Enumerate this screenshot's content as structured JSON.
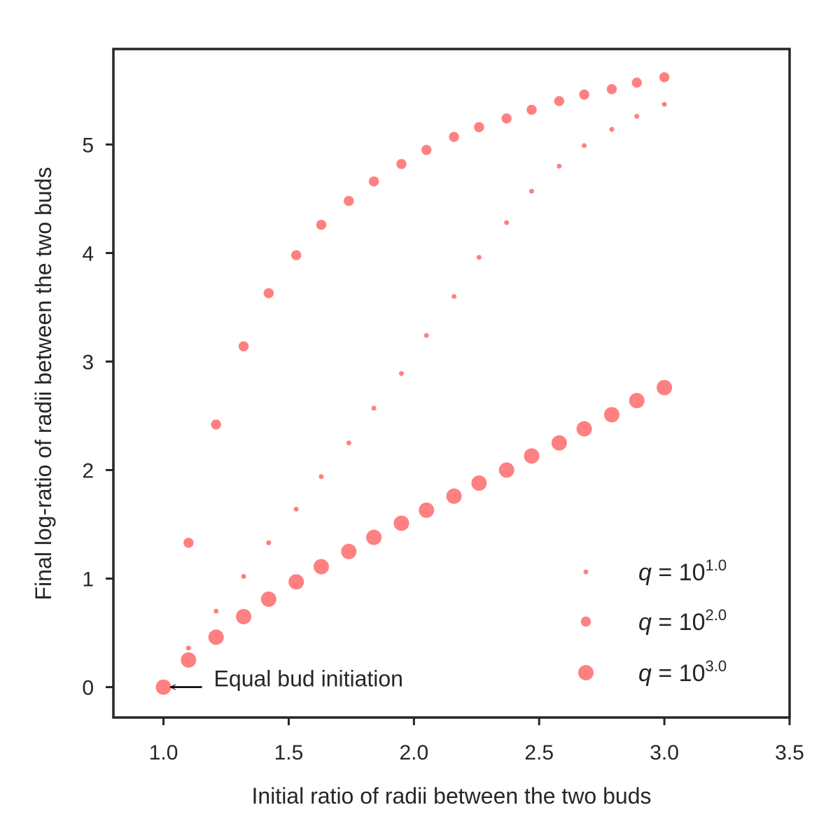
{
  "chart_data": {
    "type": "scatter",
    "title": "",
    "xlabel": "Initial ratio of radii between the two buds",
    "ylabel": "Final log-ratio of radii between the two buds",
    "xlim": [
      0.8,
      3.5
    ],
    "ylim": [
      -0.28,
      5.88
    ],
    "xticks": [
      1.0,
      1.5,
      2.0,
      2.5,
      3.0,
      3.5
    ],
    "xtick_labels": [
      "1.0",
      "1.5",
      "2.0",
      "2.5",
      "3.0",
      "3.5"
    ],
    "yticks": [
      0,
      1,
      2,
      3,
      4,
      5
    ],
    "ytick_labels": [
      "0",
      "1",
      "2",
      "3",
      "4",
      "5"
    ],
    "grid": false,
    "legend_position": "lower-right",
    "marker_color": "#ff8080",
    "series": [
      {
        "legend": {
          "base": "q = 10",
          "exponent": "1.0"
        },
        "marker_size": "small",
        "x": [
          1.0,
          1.1,
          1.21,
          1.32,
          1.42,
          1.53,
          1.63,
          1.74,
          1.84,
          1.95,
          2.05,
          2.16,
          2.26,
          2.37,
          2.47,
          2.58,
          2.68,
          2.79,
          2.89,
          3.0
        ],
        "y": [
          0.0,
          0.36,
          0.7,
          1.02,
          1.33,
          1.64,
          1.94,
          2.25,
          2.57,
          2.89,
          3.24,
          3.6,
          3.96,
          4.28,
          4.57,
          4.8,
          4.99,
          5.14,
          5.26,
          5.37
        ]
      },
      {
        "legend": {
          "base": "q = 10",
          "exponent": "2.0"
        },
        "marker_size": "medium",
        "x": [
          1.0,
          1.1,
          1.21,
          1.32,
          1.42,
          1.53,
          1.63,
          1.74,
          1.84,
          1.95,
          2.05,
          2.16,
          2.26,
          2.37,
          2.47,
          2.58,
          2.68,
          2.79,
          2.89,
          3.0
        ],
        "y": [
          0.0,
          1.33,
          2.42,
          3.14,
          3.63,
          3.98,
          4.26,
          4.48,
          4.66,
          4.82,
          4.95,
          5.07,
          5.16,
          5.24,
          5.32,
          5.4,
          5.46,
          5.51,
          5.57,
          5.62
        ]
      },
      {
        "legend": {
          "base": "q = 10",
          "exponent": "3.0"
        },
        "marker_size": "large",
        "x": [
          1.0,
          1.1,
          1.21,
          1.32,
          1.42,
          1.53,
          1.63,
          1.74,
          1.84,
          1.95,
          2.05,
          2.16,
          2.26,
          2.37,
          2.47,
          2.58,
          2.68,
          2.79,
          2.89,
          3.0
        ],
        "y": [
          0.0,
          0.25,
          0.46,
          0.65,
          0.81,
          0.97,
          1.11,
          1.25,
          1.38,
          1.51,
          1.63,
          1.76,
          1.88,
          2.0,
          2.13,
          2.25,
          2.38,
          2.51,
          2.64,
          2.76
        ]
      }
    ],
    "annotations": [
      {
        "text": "Equal bud initiation",
        "target": [
          1.0,
          0.0
        ],
        "arrow": true
      }
    ]
  }
}
